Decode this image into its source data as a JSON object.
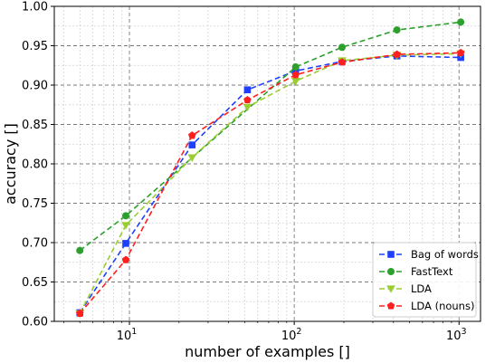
{
  "chart_data": {
    "type": "line",
    "title": "",
    "xlabel": "number of examples []",
    "ylabel": "accuracy []",
    "xscale": "log",
    "xlim": [
      3.5,
      1350
    ],
    "ylim": [
      0.6,
      1.0
    ],
    "grid": true,
    "legend_position": "bottom-right",
    "x_tick_labels": [
      {
        "base": "10",
        "exp": "1",
        "value": 10
      },
      {
        "base": "10",
        "exp": "2",
        "value": 100
      },
      {
        "base": "10",
        "exp": "3",
        "value": 1000
      }
    ],
    "y_ticks": [
      "0.60",
      "0.65",
      "0.70",
      "0.75",
      "0.80",
      "0.85",
      "0.90",
      "0.95",
      "1.00"
    ],
    "x": [
      5,
      9.5,
      24,
      52,
      102,
      195,
      420,
      1024
    ],
    "series": [
      {
        "name": "Bag of words",
        "color": "#1f3fff",
        "marker": "square",
        "values": [
          0.611,
          0.699,
          0.824,
          0.894,
          0.918,
          0.93,
          0.937,
          0.935
        ]
      },
      {
        "name": "FastText",
        "color": "#2ca02c",
        "marker": "circle",
        "values": [
          0.69,
          0.734,
          null,
          null,
          0.923,
          0.948,
          0.97,
          0.98
        ]
      },
      {
        "name": "LDA",
        "color": "#9acd32",
        "marker": "triangle-down",
        "values": [
          0.61,
          0.722,
          0.808,
          0.872,
          0.905,
          0.931,
          0.938,
          0.94
        ]
      },
      {
        "name": "LDA (nouns)",
        "color": "#ff1f1f",
        "marker": "pentagon",
        "values": [
          0.61,
          0.678,
          0.836,
          0.881,
          0.913,
          0.929,
          0.939,
          0.941
        ]
      }
    ]
  }
}
